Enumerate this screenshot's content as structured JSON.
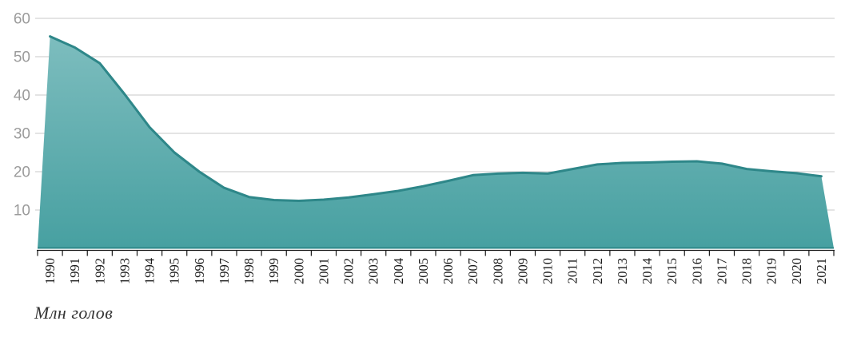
{
  "chart_data": {
    "type": "area",
    "title": "",
    "xlabel": "",
    "ylabel": "Млн голов",
    "x": [
      1990,
      1991,
      1992,
      1993,
      1994,
      1995,
      1996,
      1997,
      1998,
      1999,
      2000,
      2001,
      2002,
      2003,
      2004,
      2005,
      2006,
      2007,
      2008,
      2009,
      2010,
      2011,
      2012,
      2013,
      2014,
      2015,
      2016,
      2017,
      2018,
      2019,
      2020,
      2021
    ],
    "values": [
      55.3,
      52.4,
      48.3,
      40.2,
      31.6,
      25.0,
      20.0,
      15.8,
      13.4,
      12.6,
      12.4,
      12.7,
      13.3,
      14.1,
      15.0,
      16.2,
      17.6,
      19.1,
      19.5,
      19.7,
      19.5,
      20.7,
      21.9,
      22.3,
      22.4,
      22.6,
      22.7,
      22.1,
      20.7,
      20.1,
      19.6,
      18.8
    ],
    "ylim": [
      0,
      60
    ],
    "yticks": [
      10,
      20,
      30,
      40,
      50,
      60
    ],
    "grid": "horizontal-only",
    "legend": "none",
    "colors": {
      "line": "#2E8789",
      "fill_top": "#7DBDBE",
      "fill_bottom": "#47A0A1",
      "gridline": "#C9C9C9",
      "axis": "#1A1A1A",
      "ytick_label": "#9B9B9B",
      "xtick_label": "#1A1A1A",
      "caption": "#343434",
      "background": "#FFFFFF"
    }
  }
}
